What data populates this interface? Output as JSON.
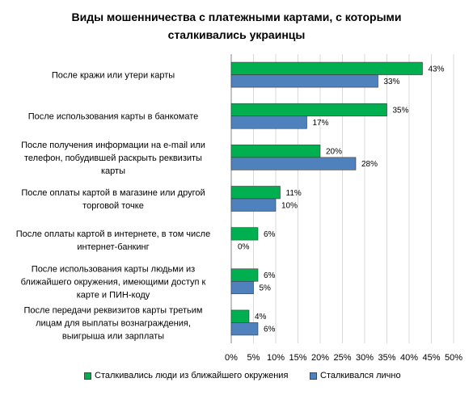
{
  "chart_data": {
    "type": "bar",
    "orientation": "horizontal",
    "title": "Виды мошенничества с платежными картами, с которыми сталкивались украинцы",
    "categories": [
      "После кражи или утери карты",
      "После использования карты в банкомате",
      "После получения информации на e-mail или телефон, побудившей раскрыть реквизиты карты",
      "После оплаты картой в магазине или другой торговой точке",
      "После оплаты картой в интернете, в том числе интернет-банкинг",
      "После использования карты людьми из ближайшего окружения, имеющими доступ к карте и ПИН-коду",
      "После передачи реквизитов карты третьим лицам для выплаты вознаграждения, выигрыша или зарплаты"
    ],
    "category_lines": [
      [
        "После кражи или утери карты"
      ],
      [
        "После использования карты в банкомате"
      ],
      [
        "После получения информации на e-mail или",
        "телефон, побудившей раскрыть реквизиты",
        "карты"
      ],
      [
        "После оплаты картой в магазине или другой",
        "торговой точке"
      ],
      [
        "После оплаты картой в интернете, в том числе",
        "интернет-банкинг"
      ],
      [
        "После использования карты людьми из",
        "ближайшего окружения, имеющими доступ к",
        "карте и ПИН-коду"
      ],
      [
        "После передачи реквизитов карты третьим",
        "лицам для выплаты вознаграждения,",
        "выигрыша или зарплаты"
      ]
    ],
    "series": [
      {
        "name": "Сталкивались люди из ближайшего окружения",
        "color": "#00B050",
        "values": [
          43,
          35,
          20,
          11,
          6,
          6,
          4
        ]
      },
      {
        "name": "Сталкивался лично",
        "color": "#4F81BD",
        "values": [
          33,
          17,
          28,
          10,
          0,
          5,
          6
        ]
      }
    ],
    "value_suffix": "%",
    "xlim": [
      0,
      50
    ],
    "x_ticks": [
      0,
      5,
      10,
      15,
      20,
      25,
      30,
      35,
      40,
      45,
      50
    ],
    "x_tick_labels": [
      "0%",
      "5%",
      "10%",
      "15%",
      "20%",
      "25%",
      "30%",
      "35%",
      "40%",
      "45%",
      "50%"
    ],
    "grid": true,
    "legend_position": "bottom"
  }
}
